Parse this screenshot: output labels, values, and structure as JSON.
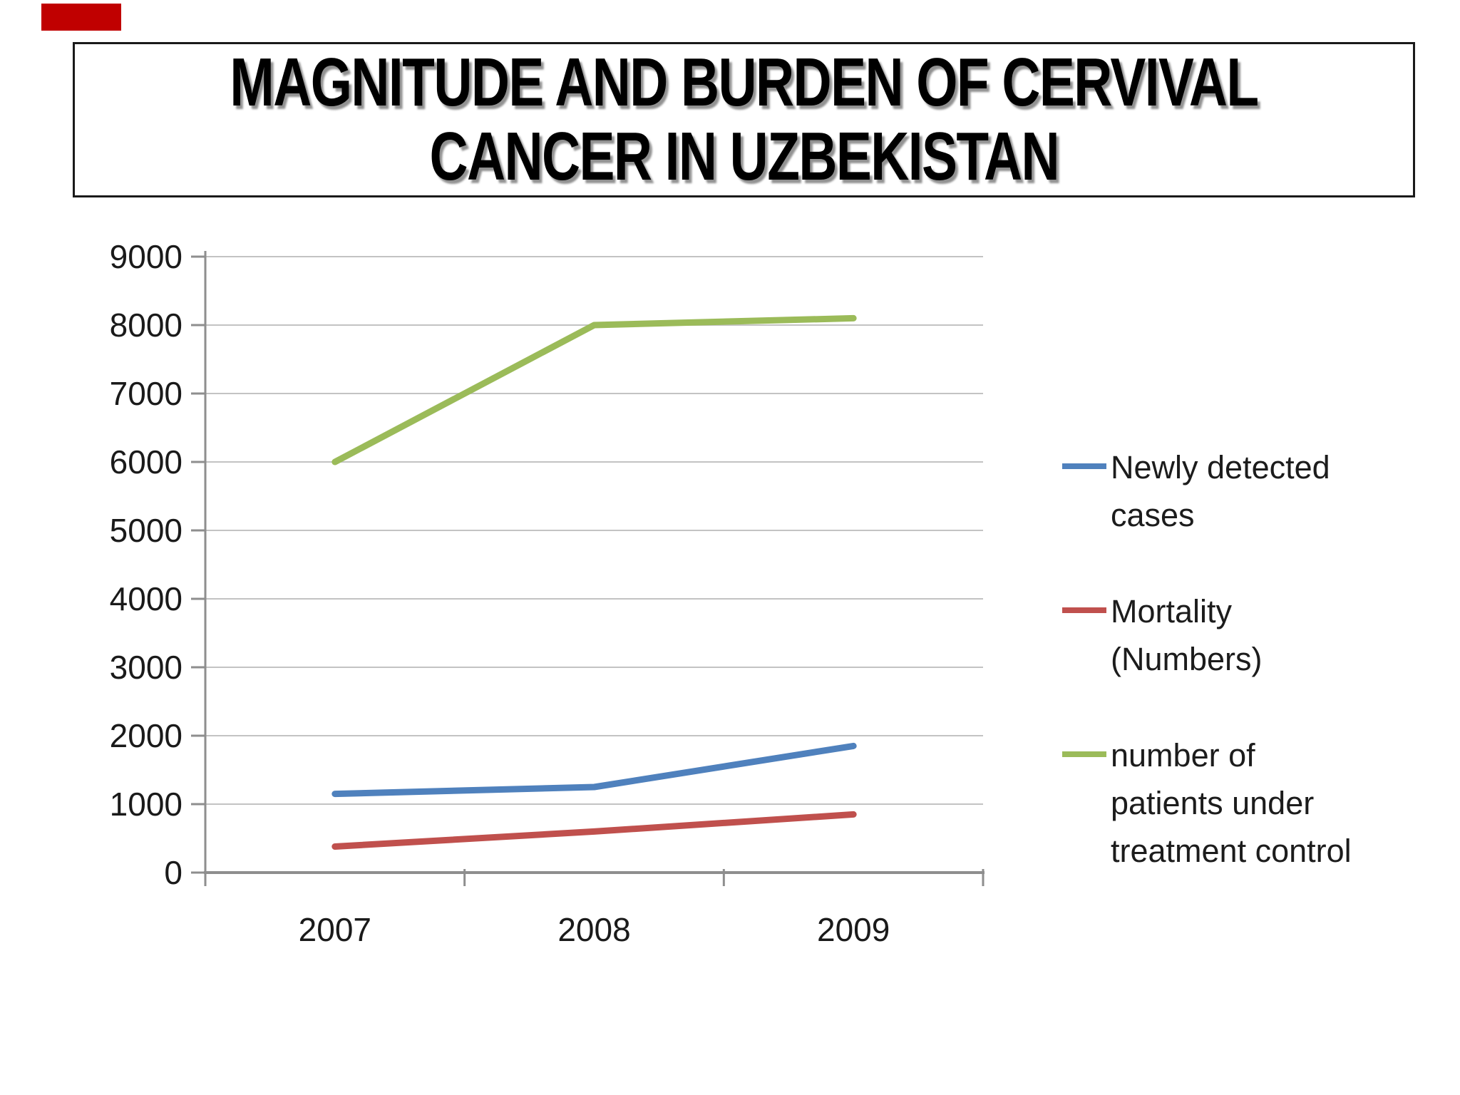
{
  "slide": {
    "red_marker_color": "#c00000",
    "background_color": "#ffffff"
  },
  "title": {
    "line1": "MAGNITUDE AND BURDEN OF CERVIVAL",
    "line2": "CANCER IN UZBEKISTAN"
  },
  "chart_data": {
    "type": "line",
    "title": "",
    "xlabel": "",
    "ylabel": "",
    "categories": [
      "2007",
      "2008",
      "2009"
    ],
    "series": [
      {
        "name": "Newly detected cases",
        "color": "#4F81BD",
        "values": [
          1150,
          1250,
          1850
        ]
      },
      {
        "name": "Mortality (Numbers)",
        "color": "#C0504D",
        "values": [
          380,
          600,
          850
        ]
      },
      {
        "name": "number of patients under treatment control",
        "color": "#9BBB59",
        "values": [
          6000,
          8000,
          8100
        ]
      }
    ],
    "ylim": [
      0,
      9000
    ],
    "ytick_step": 1000,
    "yticks": [
      0,
      1000,
      2000,
      3000,
      4000,
      5000,
      6000,
      7000,
      8000,
      9000
    ],
    "grid": "horizontal",
    "gridline_color": "#c3c3c3",
    "axis_color": "#8e8e8e",
    "legend_position": "right"
  },
  "legend": {
    "items": [
      {
        "color": "#4F81BD",
        "label": "Newly detected cases",
        "lines": [
          "Newly detected",
          "cases"
        ]
      },
      {
        "color": "#C0504D",
        "label": "Mortality (Numbers)",
        "lines": [
          "Mortality",
          "(Numbers)"
        ]
      },
      {
        "color": "#9BBB59",
        "label": "number of patients under treatment control",
        "lines": [
          "number of",
          "patients under",
          "treatment control"
        ]
      }
    ]
  }
}
